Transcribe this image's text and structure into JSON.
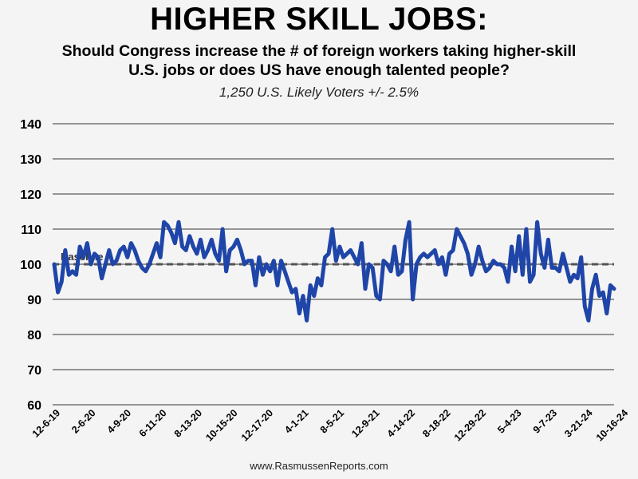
{
  "header": {
    "title": "HIGHER SKILL JOBS:",
    "subtitle_line1": "Should Congress increase the # of foreign workers taking higher-skill",
    "subtitle_line2": "U.S. jobs or does US have enough talented people?",
    "note": "1,250 U.S. Likely Voters +/- 2.5%"
  },
  "footer": {
    "source": "www.RasmussenReports.com"
  },
  "colors": {
    "line": "#1f45a8",
    "grid": "#333333",
    "baseline": "#555555"
  },
  "chart_data": {
    "type": "line",
    "title": "HIGHER SKILL JOBS:",
    "ylim": [
      60,
      140
    ],
    "yticks": [
      60,
      70,
      80,
      90,
      100,
      110,
      120,
      130,
      140
    ],
    "xtick_labels": [
      "12-6-19",
      "2-6-20",
      "4-9-20",
      "6-11-20",
      "8-13-20",
      "10-15-20",
      "12-17-20",
      "4-1-21",
      "8-5-21",
      "12-9-21",
      "4-14-22",
      "8-18-22",
      "12-29-22",
      "5-4-23",
      "9-7-23",
      "3-21-24",
      "10-16-24"
    ],
    "baseline": {
      "value": 100,
      "label": "Baseline"
    },
    "grid": true,
    "series": [
      {
        "values": [
          100,
          92,
          95,
          104,
          97,
          98,
          97,
          105,
          102,
          106,
          100,
          103,
          102,
          96,
          100,
          104,
          100,
          101,
          104,
          105,
          102,
          106,
          104,
          101,
          99,
          98,
          100,
          103,
          106,
          102,
          112,
          111,
          109,
          106,
          112,
          105,
          104,
          108,
          105,
          103,
          107,
          102,
          104,
          107,
          103,
          101,
          110,
          98,
          104,
          105,
          107,
          104,
          100,
          101,
          101,
          94,
          102,
          97,
          100,
          98,
          101,
          94,
          101,
          98,
          95,
          92,
          93,
          86,
          91,
          84,
          94,
          91,
          96,
          94,
          102,
          103,
          110,
          101,
          105,
          102,
          103,
          104,
          102,
          100,
          106,
          93,
          100,
          99,
          91,
          90,
          101,
          100,
          98,
          105,
          97,
          98,
          107,
          112,
          90,
          100,
          102,
          103,
          102,
          103,
          104,
          100,
          102,
          97,
          103,
          104,
          110,
          108,
          106,
          103,
          97,
          100,
          105,
          101,
          98,
          99,
          101,
          100,
          100,
          99,
          95,
          105,
          98,
          108,
          97,
          110,
          95,
          97,
          112,
          103,
          99,
          107,
          99,
          99,
          98,
          103,
          99,
          95,
          97,
          96,
          102,
          88,
          84,
          93,
          97,
          91,
          92,
          86,
          94,
          93
        ]
      }
    ]
  }
}
